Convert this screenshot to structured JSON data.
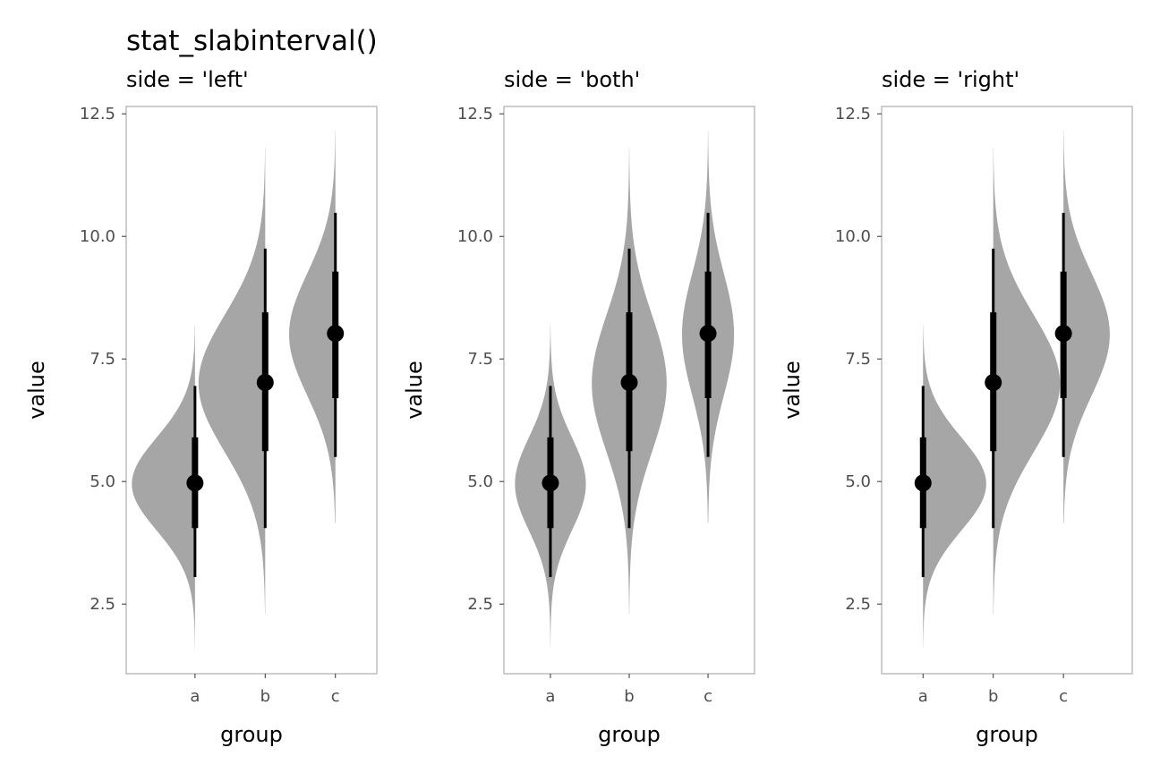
{
  "chart_data": {
    "type": "slabinterval",
    "title": "stat_slabinterval()",
    "ylim": [
      1.08,
      12.65
    ],
    "yticks": [
      2.5,
      5.0,
      7.5,
      10.0,
      12.5
    ],
    "ytick_labels": [
      "2.5",
      "5.0",
      "7.5",
      "10.0",
      "12.5"
    ],
    "categories": [
      "a",
      "b",
      "c"
    ],
    "xlabel": "group",
    "ylabel": "value",
    "slab_color": "#a6a6a6",
    "interval_color": "#000000",
    "groups": [
      {
        "name": "a",
        "median": 4.97,
        "interval_66": [
          4.05,
          5.9
        ],
        "interval_95": [
          3.05,
          6.95
        ],
        "slab_range": [
          1.6,
          8.2
        ],
        "mean": 4.95,
        "sd": 0.95,
        "peak_width": 0.9
      },
      {
        "name": "b",
        "median": 7.02,
        "interval_66": [
          5.62,
          8.45
        ],
        "interval_95": [
          4.05,
          9.75
        ],
        "slab_range": [
          2.3,
          11.8
        ],
        "mean": 7.0,
        "sd": 1.4,
        "peak_width": 0.95
      },
      {
        "name": "c",
        "median": 8.02,
        "interval_66": [
          6.7,
          9.28
        ],
        "interval_95": [
          5.5,
          10.48
        ],
        "slab_range": [
          4.15,
          12.15
        ],
        "mean": 8.0,
        "sd": 1.25,
        "peak_width": 0.66
      }
    ],
    "panels": [
      {
        "subtitle": "side = 'left'",
        "side": "left",
        "xlim": [
          0.02,
          3.59
        ]
      },
      {
        "subtitle": "side = 'both'",
        "side": "both",
        "xlim": [
          0.41,
          3.59
        ]
      },
      {
        "subtitle": "side = 'right'",
        "side": "right",
        "xlim": [
          0.41,
          3.98
        ]
      }
    ]
  }
}
